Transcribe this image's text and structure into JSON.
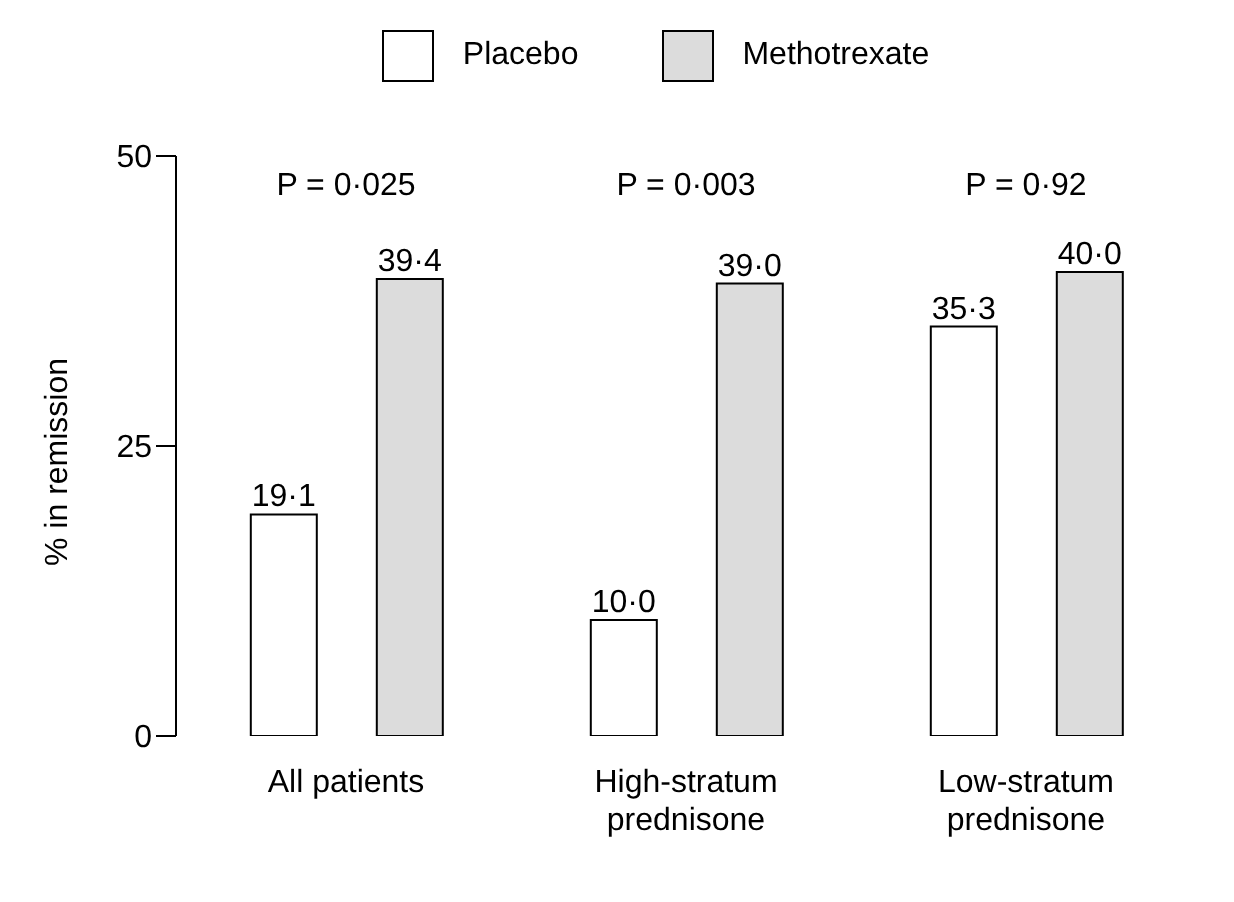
{
  "chart_data": {
    "type": "bar",
    "ylabel": "% in remission",
    "categories": [
      "All patients",
      "High-stratum prednisone",
      "Low-stratum prednisone"
    ],
    "series": [
      {
        "name": "Placebo",
        "color": "#ffffff",
        "values": [
          19.1,
          10.0,
          35.3
        ],
        "value_labels": [
          "19·1",
          "10·0",
          "35·3"
        ]
      },
      {
        "name": "Methotrexate",
        "color": "#dcdcdc",
        "values": [
          39.4,
          39.0,
          40.0
        ],
        "value_labels": [
          "39·4",
          "39·0",
          "40·0"
        ]
      }
    ],
    "annotations": [
      "P = 0·025",
      "P = 0·003",
      "P = 0·92"
    ],
    "ylim": [
      0,
      50
    ],
    "yticks": [
      0,
      25,
      50
    ],
    "grid": false,
    "legend": "top"
  }
}
